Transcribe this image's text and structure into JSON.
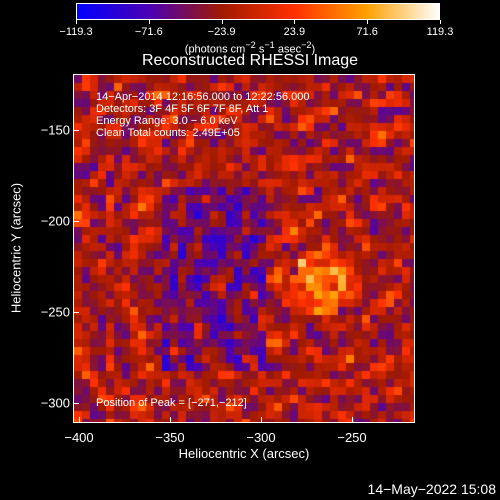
{
  "colorbar": {
    "ticks": [
      "−119.3",
      "−71.6",
      "−23.9",
      "23.9",
      "71.6",
      "119.3"
    ],
    "units_prefix": "(photons cm",
    "units_sup1": "−2",
    "units_mid": " s",
    "units_sup2": "−1",
    "units_mid2": " asec",
    "units_sup3": "−2",
    "units_suffix": ")",
    "colors": [
      "#0000ff",
      "#4b00b4",
      "#a01a00",
      "#ff3000",
      "#ffa000",
      "#ffffff"
    ]
  },
  "title": "Reconstructed RHESSI Image",
  "annotations": {
    "time_range": "14−Apr−2014 12:16:56.000 to 12:22:56.000",
    "detectors": "Detectors: 3F 4F 5F 6F 7F 8F, Att 1",
    "energy": "Energy Range: 3.0 − 6.0 keV",
    "method": "Clean     Total counts: 2.49E+05",
    "peak": "Position of Peak = [−271,−212]"
  },
  "axes": {
    "xlabel": "Heliocentric X (arcsec)",
    "ylabel": "Heliocentric Y (arcsec)",
    "xticks": [
      "−400",
      "−350",
      "−300",
      "−250"
    ],
    "yticks": [
      "−150",
      "−200",
      "−250",
      "−300"
    ]
  },
  "timestamp": "14−May−2022 15:08"
}
